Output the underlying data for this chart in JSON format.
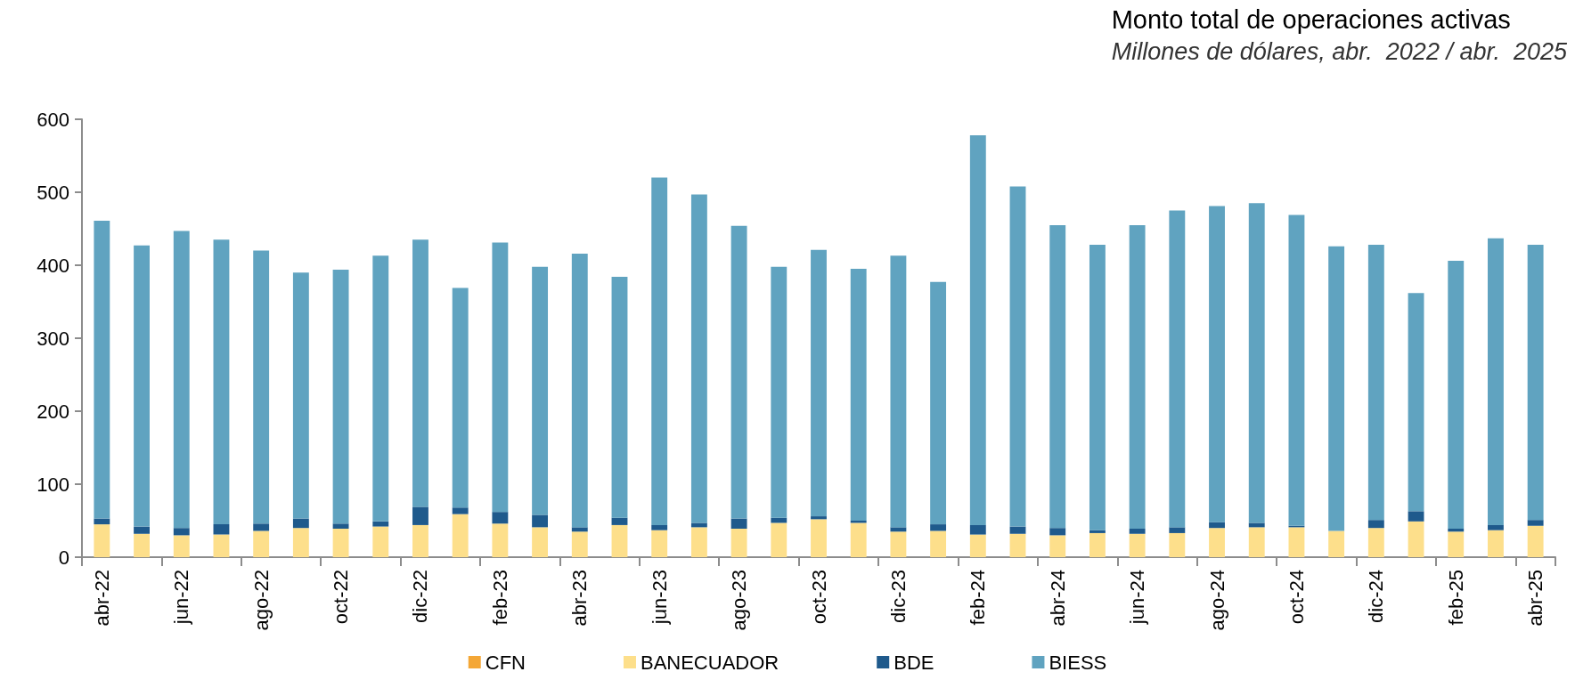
{
  "chart_data": {
    "type": "bar",
    "title": "Monto total de operaciones activas",
    "subtitle": "Millones de dólares, abr.  2022 / abr.  2025",
    "categories": [
      "abr-22",
      null,
      "jun-22",
      null,
      "ago-22",
      null,
      "oct-22",
      null,
      "dic-22",
      null,
      "feb-23",
      null,
      "abr-23",
      null,
      "jun-23",
      null,
      "ago-23",
      null,
      "oct-23",
      null,
      "dic-23",
      null,
      "feb-24",
      null,
      "abr-24",
      null,
      "jun-24",
      null,
      "ago-24",
      null,
      "oct-24",
      null,
      "dic-24",
      null,
      "feb-25",
      null,
      "abr-25"
    ],
    "stacked": true,
    "series": [
      {
        "name": "CFN",
        "color": "#f4a736",
        "values": [
          0,
          0,
          0,
          0,
          0,
          0,
          0,
          0,
          0,
          0,
          0,
          0,
          0,
          0,
          0,
          0,
          0,
          0,
          0,
          0,
          0,
          0,
          0,
          0,
          0,
          0,
          0,
          0,
          0,
          0,
          0,
          0,
          0,
          0,
          0,
          0,
          0
        ]
      },
      {
        "name": "BANECUADOR",
        "color": "#fddf8b",
        "values": [
          45,
          32,
          30,
          31,
          36,
          40,
          39,
          42,
          44,
          59,
          46,
          41,
          35,
          44,
          37,
          41,
          39,
          47,
          52,
          47,
          35,
          36,
          31,
          32,
          30,
          33,
          32,
          33,
          40,
          41,
          41,
          36,
          40,
          49,
          35,
          37,
          43
        ]
      },
      {
        "name": "BDE",
        "color": "#1f5a8c",
        "values": [
          8,
          10,
          10,
          14,
          10,
          13,
          7,
          7,
          25,
          9,
          16,
          17,
          6,
          10,
          7,
          6,
          14,
          7,
          4,
          3,
          6,
          9,
          13,
          10,
          10,
          4,
          7,
          8,
          8,
          6,
          2,
          0,
          11,
          14,
          4,
          7,
          8
        ]
      },
      {
        "name": "BIESS",
        "color": "#60a3c0",
        "values": [
          408,
          385,
          407,
          390,
          374,
          337,
          348,
          364,
          366,
          301,
          369,
          340,
          375,
          330,
          476,
          450,
          401,
          344,
          365,
          345,
          372,
          332,
          534,
          466,
          415,
          391,
          416,
          434,
          433,
          438,
          426,
          390,
          377,
          299,
          367,
          393,
          377
        ]
      }
    ],
    "ylim": [
      0,
      600
    ],
    "yticks": [
      0,
      100,
      200,
      300,
      400,
      500,
      600
    ],
    "grid": false,
    "legend": "bottom"
  }
}
